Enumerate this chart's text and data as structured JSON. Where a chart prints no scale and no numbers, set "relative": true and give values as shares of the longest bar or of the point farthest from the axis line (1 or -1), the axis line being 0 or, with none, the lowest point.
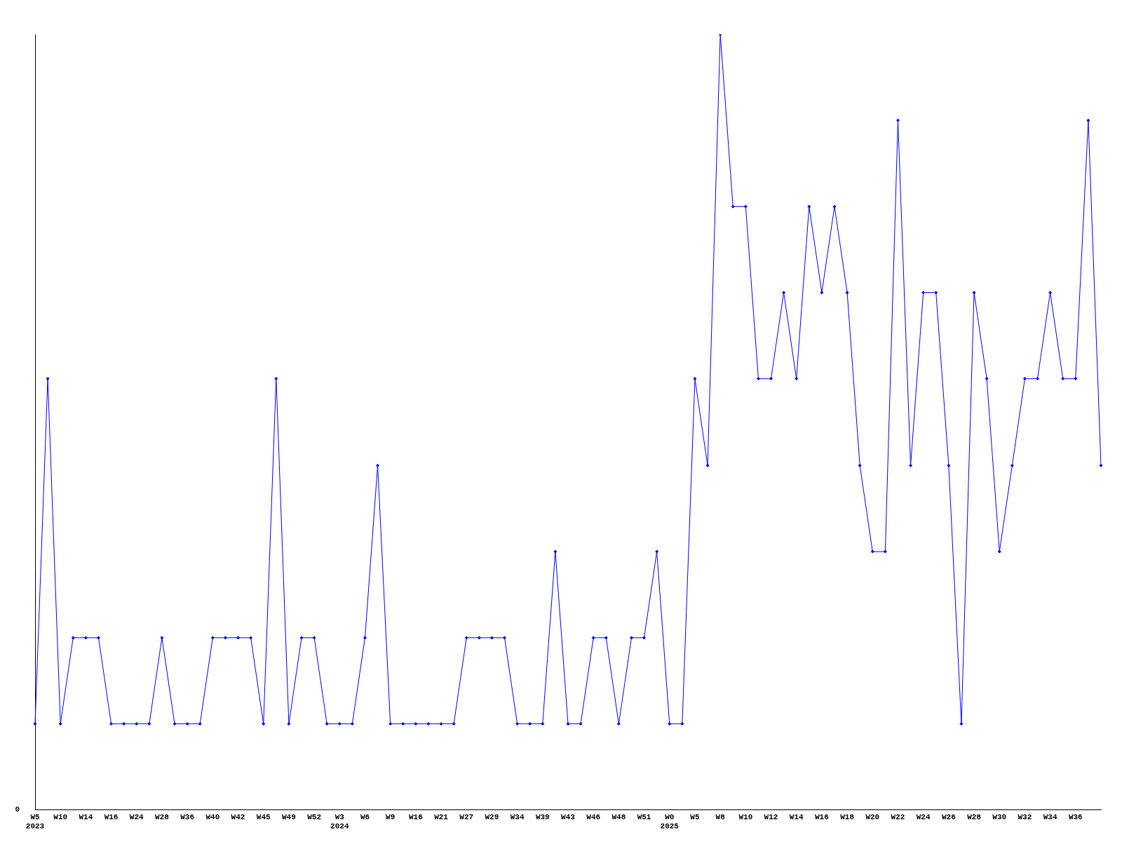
{
  "chart_data": {
    "type": "line",
    "relative": true,
    "marker": "diamond",
    "line_style": "solid",
    "grid": false,
    "legend": false,
    "annotations": [
      "0"
    ],
    "categories": [
      "W5\n2023",
      null,
      "W10",
      null,
      "W14",
      null,
      "W16",
      null,
      "W24",
      null,
      "W28",
      null,
      "W36",
      null,
      "W40",
      null,
      "W42",
      null,
      "W45",
      null,
      "W49",
      null,
      "W52",
      null,
      "W3\n2024",
      null,
      "W6",
      null,
      "W9",
      null,
      "W16",
      null,
      "W21",
      null,
      "W27",
      null,
      "W29",
      null,
      "W34",
      null,
      "W39",
      null,
      "W43",
      null,
      "W46",
      null,
      "W48",
      null,
      "W51",
      null,
      "W0\n2025",
      null,
      "W5",
      null,
      "W8",
      null,
      "W10",
      null,
      "W12",
      null,
      "W14",
      null,
      "W16",
      null,
      "W18",
      null,
      "W20",
      null,
      "W22",
      null,
      "W24",
      null,
      "W26",
      null,
      "W28",
      null,
      "W30",
      null,
      "W32",
      null,
      "W34",
      null,
      "W36",
      null,
      null
    ],
    "series": [
      {
        "color": "#0000ff",
        "values": [
          0.111,
          0.556,
          0.111,
          0.222,
          0.222,
          0.222,
          0.111,
          0.111,
          0.111,
          0.111,
          0.222,
          0.111,
          0.111,
          0.111,
          0.222,
          0.222,
          0.222,
          0.222,
          0.111,
          0.556,
          0.111,
          0.222,
          0.222,
          0.111,
          0.111,
          0.111,
          0.222,
          0.444,
          0.111,
          0.111,
          0.111,
          0.111,
          0.111,
          0.111,
          0.222,
          0.222,
          0.222,
          0.222,
          0.111,
          0.111,
          0.111,
          0.333,
          0.111,
          0.111,
          0.222,
          0.222,
          0.111,
          0.222,
          0.222,
          0.333,
          0.111,
          0.111,
          0.556,
          0.444,
          1,
          0.778,
          0.778,
          0.556,
          0.556,
          0.667,
          0.556,
          0.778,
          0.667,
          0.778,
          0.667,
          0.444,
          0.333,
          0.333,
          0.889,
          0.444,
          0.667,
          0.667,
          0.444,
          0.111,
          0.667,
          0.556,
          0.333,
          0.444,
          0.556,
          0.556,
          0.667,
          0.556,
          0.556,
          0.889,
          0.444
        ]
      }
    ]
  }
}
